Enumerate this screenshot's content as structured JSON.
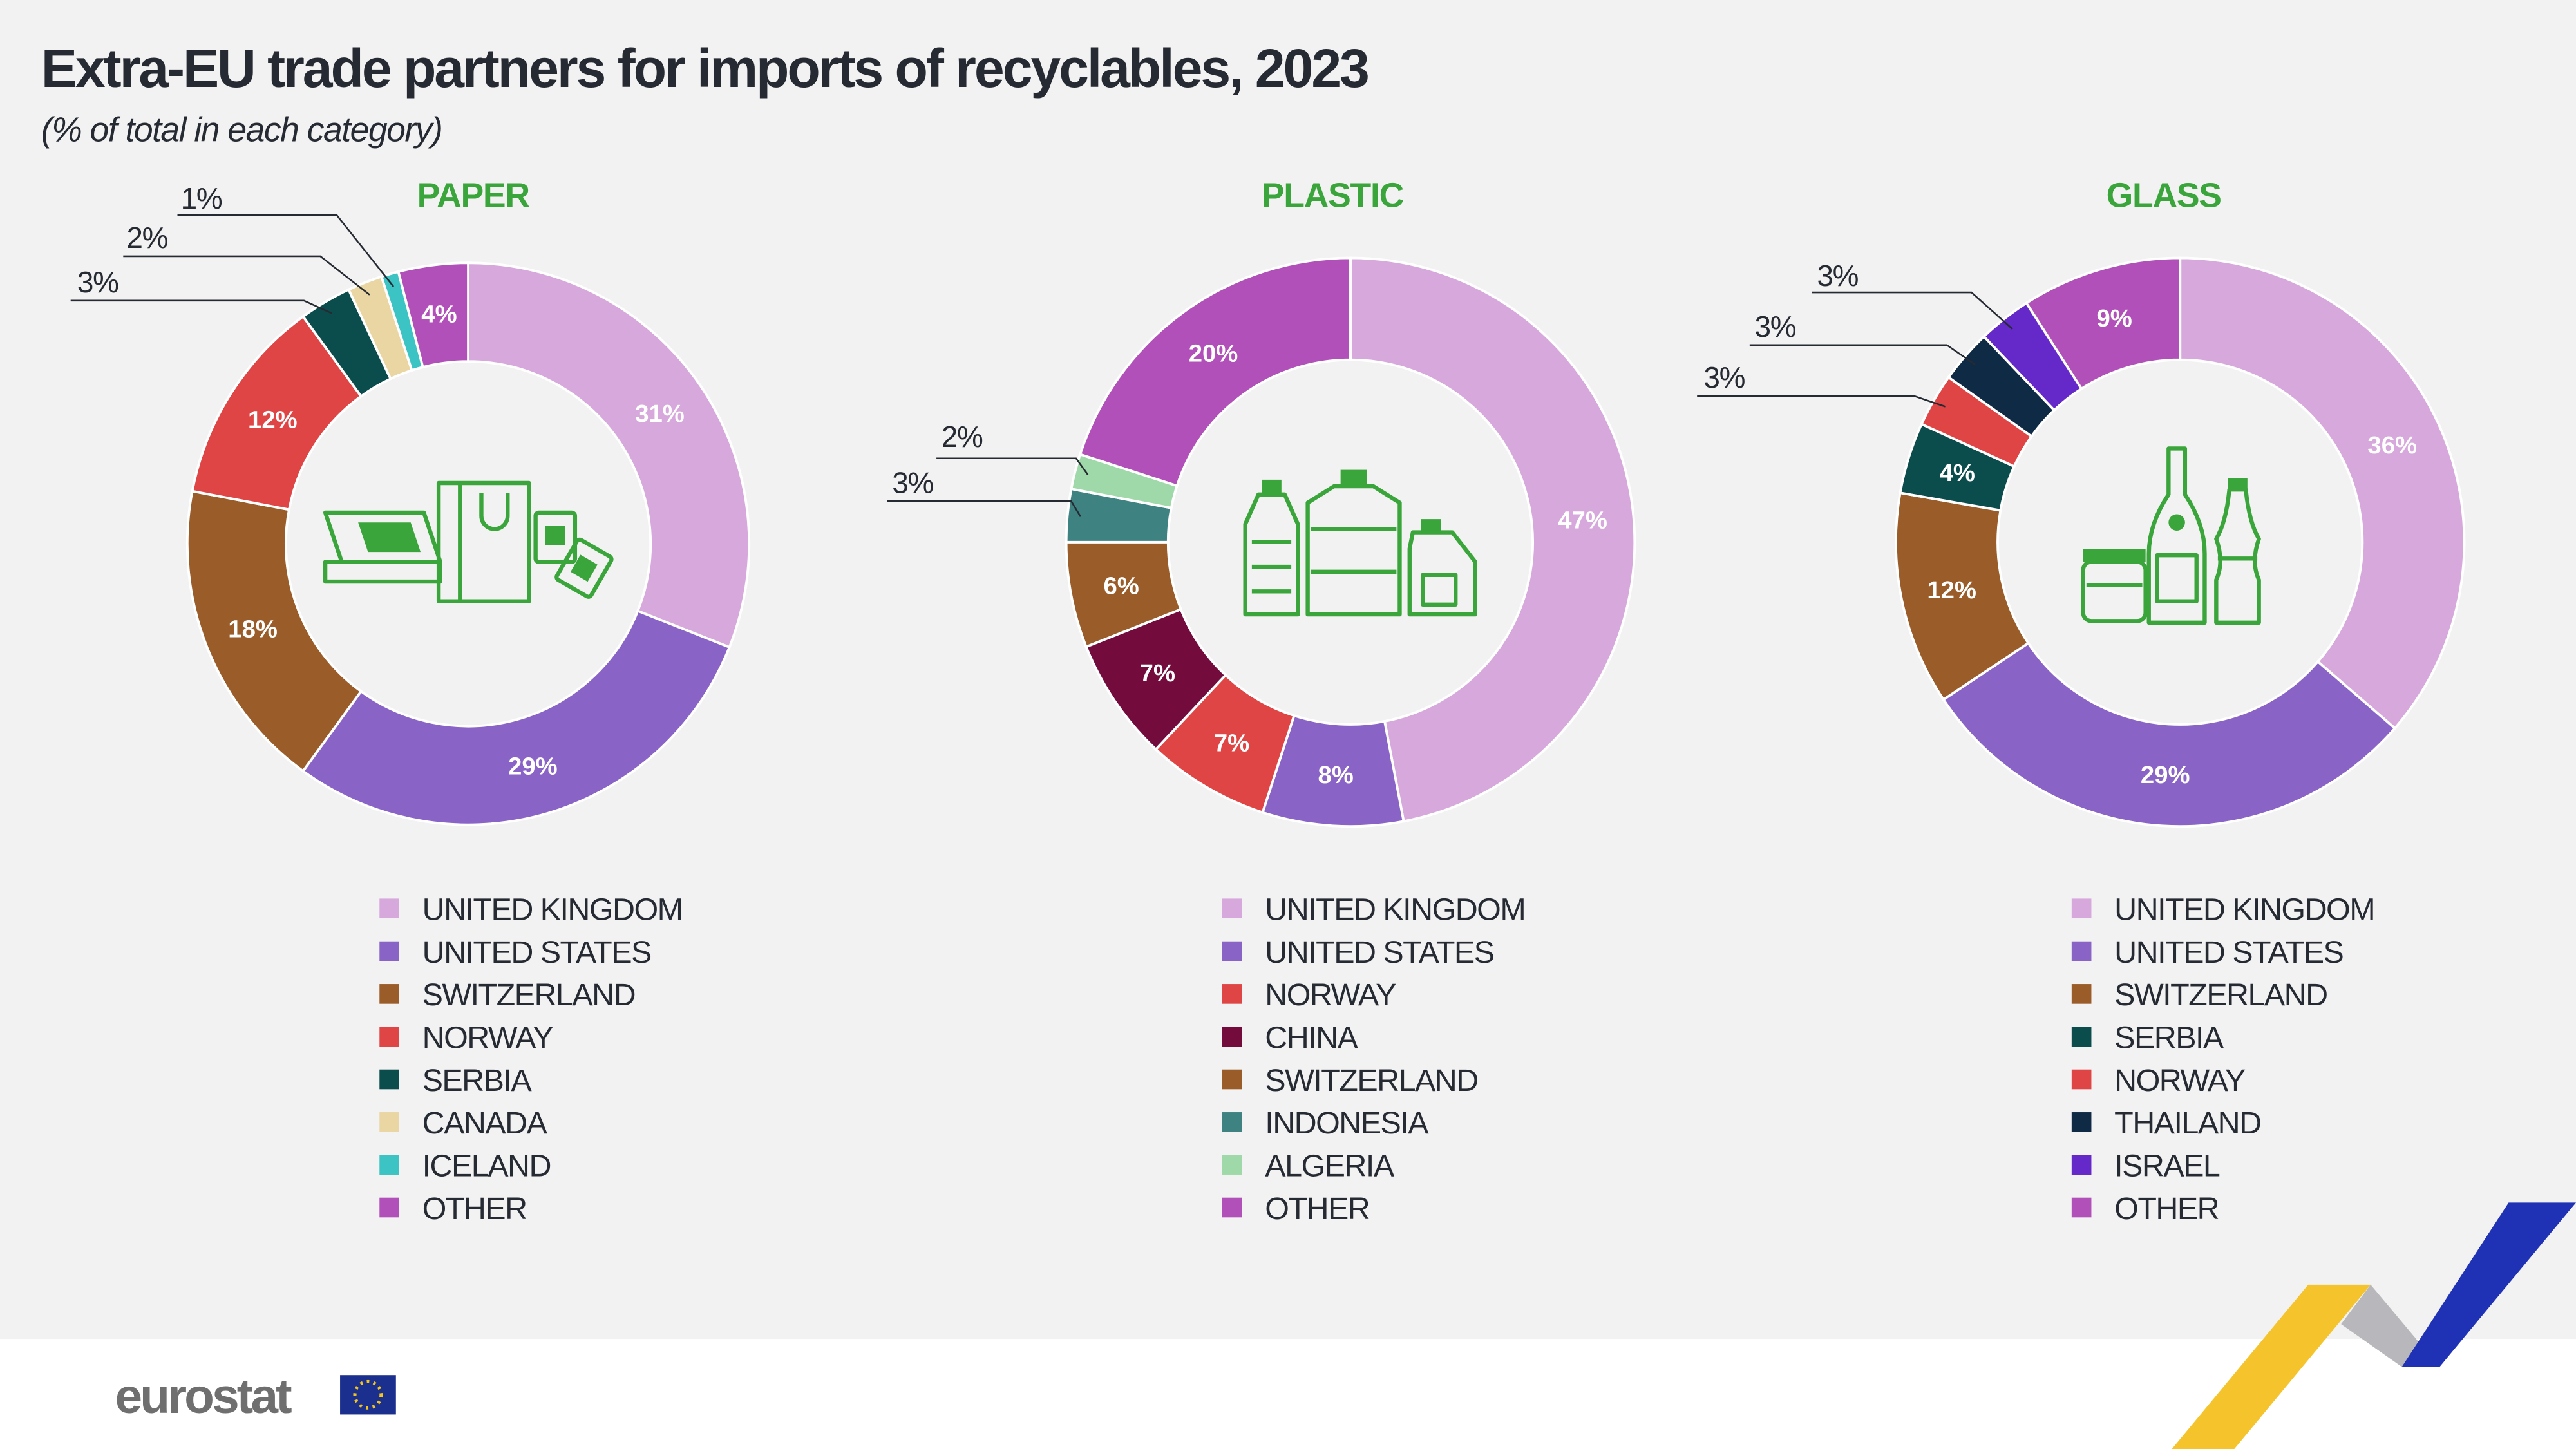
{
  "header": {
    "title": "Extra-EU trade partners for imports of recyclables, 2023",
    "subtitle": "(% of total in each category)"
  },
  "colors": {
    "accent_green": "#3aa53a",
    "UNITED KINGDOM": "#d7a8dc",
    "UNITED STATES": "#8a63c6",
    "SWITZERLAND": "#9a5c28",
    "NORWAY": "#e04545",
    "SERBIA": "#0b4c4c",
    "CANADA": "#e9d6a2",
    "ICELAND": "#3cc3c3",
    "OTHER": "#b050b8",
    "CHINA": "#730b3c",
    "INDONESIA": "#3f8282",
    "ALGERIA": "#a0d9a9",
    "THAILAND": "#0e2a45",
    "ISRAEL": "#6429c8"
  },
  "chart_data": [
    {
      "type": "pie",
      "variant": "donut",
      "title": "PAPER",
      "icon": "paper-products-icon",
      "categories": [
        "UNITED KINGDOM",
        "UNITED STATES",
        "SWITZERLAND",
        "NORWAY",
        "SERBIA",
        "CANADA",
        "ICELAND",
        "OTHER"
      ],
      "values": [
        31,
        29,
        18,
        12,
        3,
        2,
        1,
        4
      ],
      "labels": [
        "31%",
        "29%",
        "18%",
        "12%",
        "3%",
        "2%",
        "1%",
        "4%"
      ]
    },
    {
      "type": "pie",
      "variant": "donut",
      "title": "PLASTIC",
      "icon": "plastic-bottles-icon",
      "categories": [
        "UNITED KINGDOM",
        "UNITED STATES",
        "NORWAY",
        "CHINA",
        "SWITZERLAND",
        "INDONESIA",
        "ALGERIA",
        "OTHER"
      ],
      "values": [
        47,
        8,
        7,
        7,
        6,
        3,
        2,
        20
      ],
      "labels": [
        "47%",
        "8%",
        "7%",
        "7%",
        "6%",
        "3%",
        "2%",
        "20%"
      ]
    },
    {
      "type": "pie",
      "variant": "donut",
      "title": "GLASS",
      "icon": "glass-bottles-icon",
      "categories": [
        "UNITED KINGDOM",
        "UNITED STATES",
        "SWITZERLAND",
        "SERBIA",
        "NORWAY",
        "THAILAND",
        "ISRAEL",
        "OTHER"
      ],
      "values": [
        36,
        29,
        12,
        4,
        3,
        3,
        3,
        9
      ],
      "labels": [
        "36%",
        "29%",
        "12%",
        "4%",
        "3%",
        "3%",
        "3%",
        "9%"
      ]
    }
  ],
  "footer": {
    "logo": "eurostat"
  }
}
